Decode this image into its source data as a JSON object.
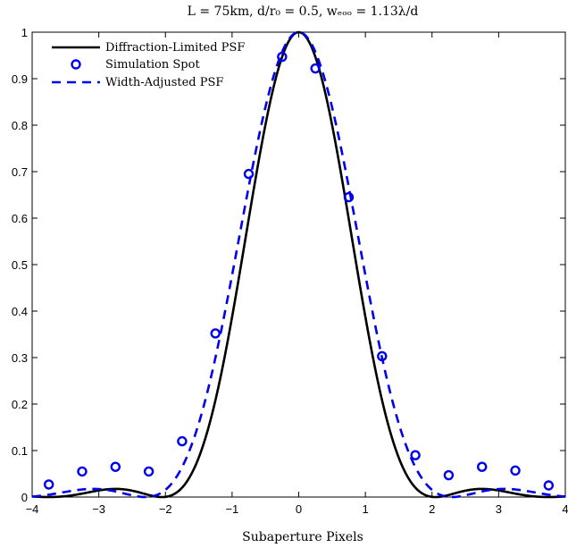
{
  "chart_data": {
    "type": "line",
    "title": "L = 75km, d/r₀ = 0.5, wₑₒₒ = 1.13λ/d",
    "xlabel": "Subaperture Pixels",
    "ylabel": "",
    "xlim": [
      -4,
      4
    ],
    "ylim": [
      0,
      1
    ],
    "x_ticks": [
      -4,
      -3,
      -2,
      -1,
      0,
      1,
      2,
      3,
      4
    ],
    "y_ticks": [
      0,
      0.1,
      0.2,
      0.3,
      0.4,
      0.5,
      0.6,
      0.7,
      0.8,
      0.9,
      1
    ],
    "x_tick_labels": [
      "−4",
      "−3",
      "−2",
      "−1",
      "0",
      "1",
      "2",
      "3",
      "4"
    ],
    "y_tick_labels": [
      "0",
      "0.1",
      "0.2",
      "0.3",
      "0.4",
      "0.5",
      "0.6",
      "0.7",
      "0.8",
      "0.9",
      "1"
    ],
    "grid": false,
    "legend_position": "top-left",
    "series": [
      {
        "name": "Diffraction-Limited PSF",
        "style": "solid",
        "color": "#000000",
        "first_zero": 2.05
      },
      {
        "name": "Simulation Spot",
        "style": "markers",
        "color": "#0000ee",
        "x": [
          -3.75,
          -3.25,
          -2.75,
          -2.25,
          -1.75,
          -1.25,
          -0.75,
          -0.25,
          0.25,
          0.75,
          1.25,
          1.75,
          2.25,
          2.75,
          3.25,
          3.75
        ],
        "y": [
          0.027,
          0.055,
          0.065,
          0.055,
          0.12,
          0.352,
          0.695,
          0.947,
          0.922,
          0.645,
          0.303,
          0.09,
          0.047,
          0.065,
          0.057,
          0.025
        ]
      },
      {
        "name": "Width-Adjusted PSF",
        "style": "dashed",
        "color": "#0000ee",
        "first_zero": 2.3
      }
    ]
  }
}
